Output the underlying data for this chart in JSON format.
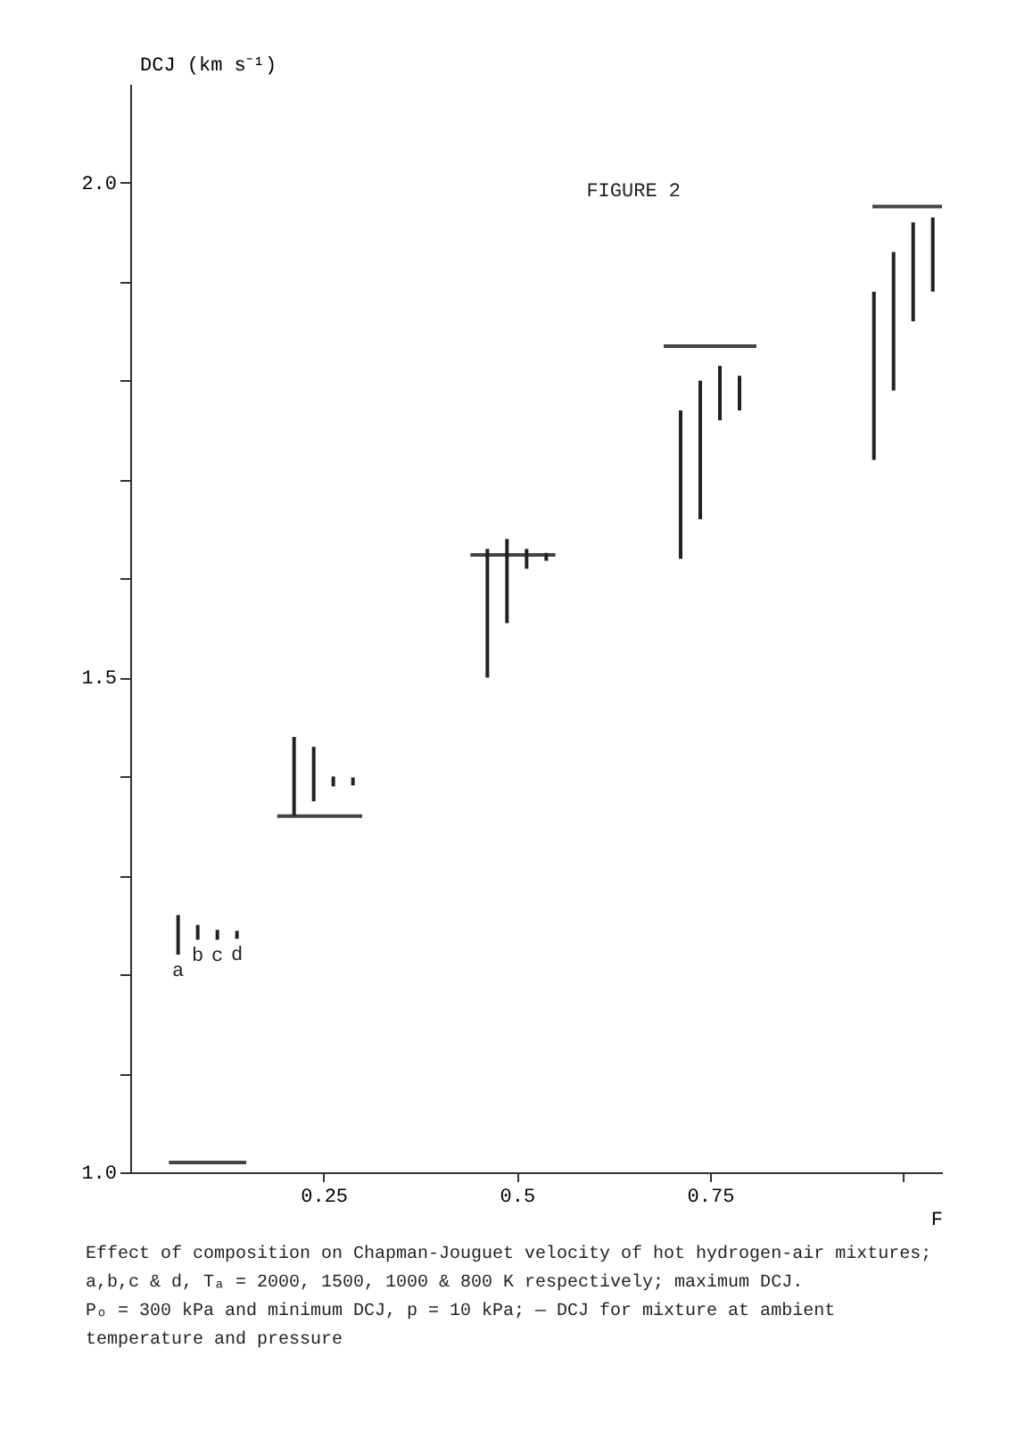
{
  "chart_data": {
    "type": "bar",
    "title": "FIGURE 2",
    "ylabel": "DCJ (km s⁻¹)",
    "xlabel": "F",
    "xlim": [
      0,
      1.05
    ],
    "xticks": [
      0.25,
      0.5,
      0.75,
      {
        "value": 1.0,
        "label": null
      }
    ],
    "ylim": [
      1.0,
      2.1
    ],
    "yticks": [
      {
        "value": 1.0,
        "label": "1.0"
      },
      {
        "value": 1.1,
        "label": null
      },
      {
        "value": 1.2,
        "label": null
      },
      {
        "value": 1.3,
        "label": null
      },
      {
        "value": 1.4,
        "label": null
      },
      1.5,
      {
        "value": 1.6,
        "label": null
      },
      {
        "value": 1.7,
        "label": null
      },
      {
        "value": 1.8,
        "label": null
      },
      {
        "value": 1.9,
        "label": null
      },
      {
        "value": 2.0,
        "label": "2.0"
      }
    ],
    "grid": false,
    "series": [
      {
        "type": "line",
        "color": "#444444",
        "x": [
          0.05,
          0.15
        ],
        "values": [
          1.01,
          1.01
        ]
      },
      {
        "type": "line",
        "color": "#444444",
        "x": [
          0.19,
          0.3
        ],
        "values": [
          1.36,
          1.36
        ]
      },
      {
        "type": "line",
        "color": "#444444",
        "x": [
          0.44,
          0.55
        ],
        "values": [
          1.624,
          1.624
        ]
      },
      {
        "type": "line",
        "color": "#444444",
        "x": [
          0.69,
          0.81
        ],
        "values": [
          1.835,
          1.835
        ]
      },
      {
        "type": "line",
        "color": "#444444",
        "x": [
          0.96,
          1.05
        ],
        "values": [
          1.976,
          1.976
        ]
      },
      {
        "name": "a",
        "color": "#222222",
        "x": [
          0.1,
          0.25,
          0.5,
          0.75,
          1.0
        ],
        "base": [
          1.22,
          1.36,
          1.5,
          1.62,
          1.72
        ],
        "values": [
          0.04,
          0.08,
          0.13,
          0.15,
          0.17
        ]
      },
      {
        "name": "b",
        "color": "#222222",
        "x": [
          0.1,
          0.25,
          0.5,
          0.75,
          1.0
        ],
        "base": [
          1.235,
          1.375,
          1.555,
          1.66,
          1.79
        ],
        "values": [
          0.015,
          0.055,
          0.085,
          0.14,
          0.14
        ]
      },
      {
        "name": "c",
        "color": "#222222",
        "x": [
          0.1,
          0.25,
          0.5,
          0.75,
          1.0
        ],
        "base": [
          1.235,
          1.39,
          1.61,
          1.76,
          1.86
        ],
        "values": [
          0.01,
          0.01,
          0.02,
          0.055,
          0.1
        ]
      },
      {
        "name": "d",
        "color": "#222222",
        "x": [
          0.1,
          0.25,
          0.5,
          0.75,
          1.0
        ],
        "base": [
          1.236,
          1.391,
          1.618,
          1.77,
          1.89
        ],
        "values": [
          0.008,
          0.008,
          0.008,
          0.035,
          0.075
        ]
      }
    ],
    "annotations": [
      "Effect of composition on Chapman-Jouguet velocity of hot hydrogen-air mixtures;",
      "a,b,c & d, Tₐ = 2000, 1500, 1000 & 800 K respectively; maximum DCJ.",
      "Pₒ = 300 kPa and minimum DCJ, p = 10 kPa; — DCJ for mixture at ambient",
      "temperature and pressure"
    ]
  }
}
